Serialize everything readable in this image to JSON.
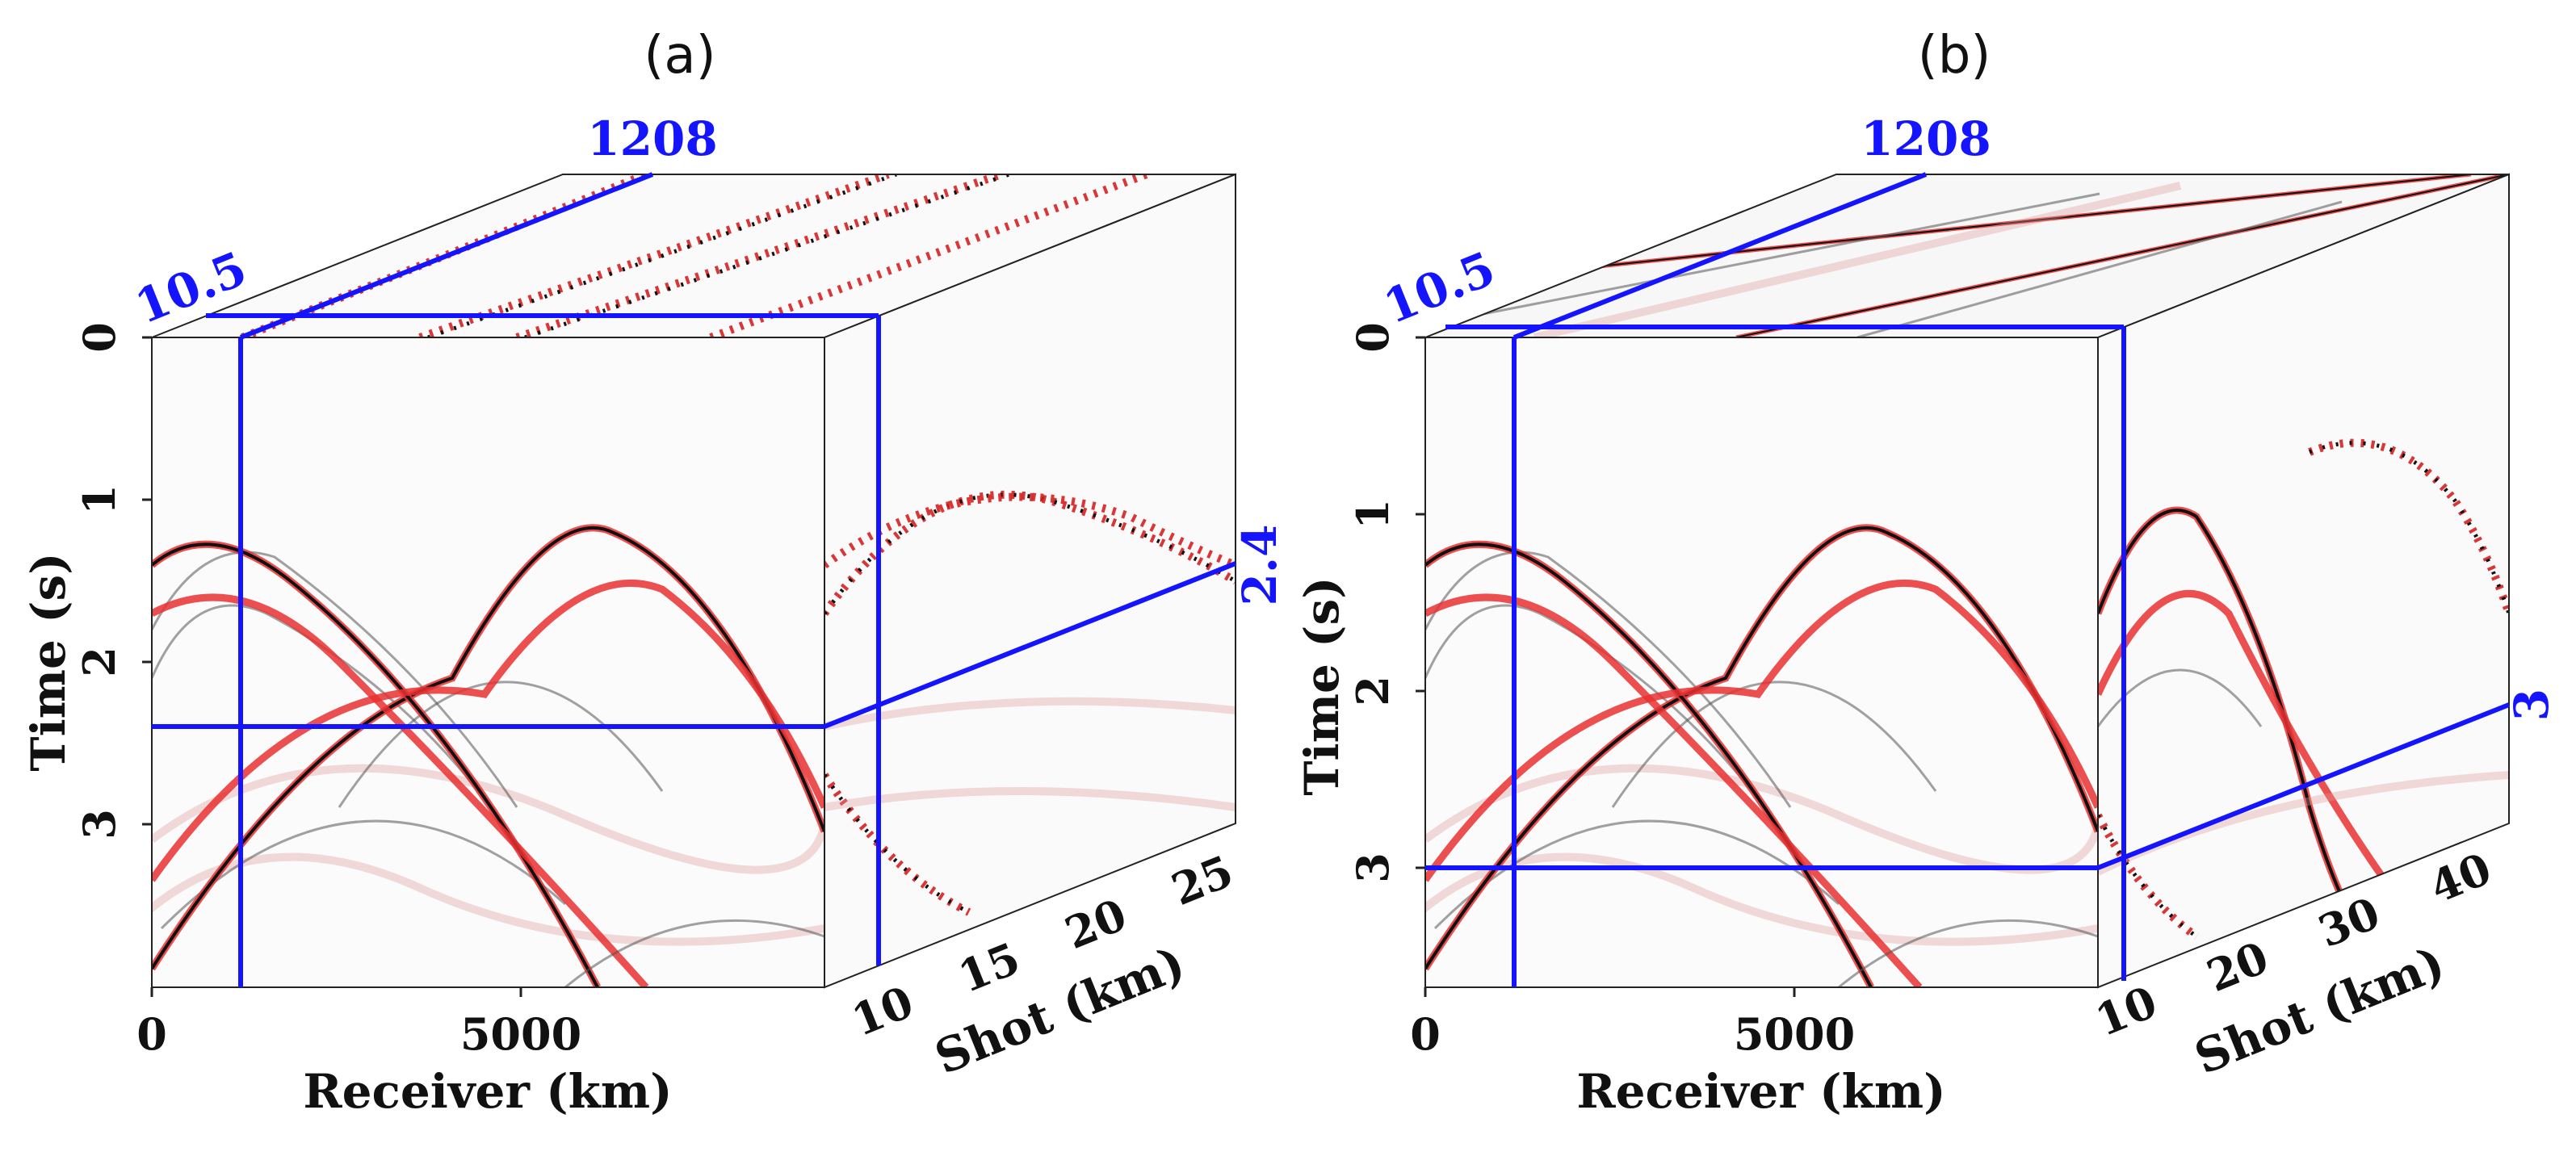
{
  "panels": [
    {
      "id": "a",
      "title": "(a)",
      "time_axis": {
        "label": "Time (s)",
        "ticks": [
          "0",
          "1",
          "2",
          "3"
        ]
      },
      "receiver_axis": {
        "label": "Receiver (km)",
        "ticks": [
          "0",
          "5000"
        ]
      },
      "shot_axis": {
        "label": "Shot (km)",
        "ticks": [
          "10",
          "15",
          "20",
          "25"
        ]
      },
      "slices": {
        "receiver": "1208",
        "shot": "10.5",
        "time": "2.4"
      }
    },
    {
      "id": "b",
      "title": "(b)",
      "time_axis": {
        "label": "Time (s)",
        "ticks": [
          "0",
          "1",
          "2",
          "3"
        ]
      },
      "receiver_axis": {
        "label": "Receiver (km)",
        "ticks": [
          "0",
          "5000"
        ]
      },
      "shot_axis": {
        "label": "Shot (km)",
        "ticks": [
          "10",
          "20",
          "30",
          "40"
        ]
      },
      "slices": {
        "receiver": "1208",
        "shot": "10.5",
        "time": "3"
      }
    }
  ],
  "colors": {
    "slice_line": "#1414ff",
    "wavelet_positive": "#e83030",
    "wavelet_negative": "#111111"
  }
}
